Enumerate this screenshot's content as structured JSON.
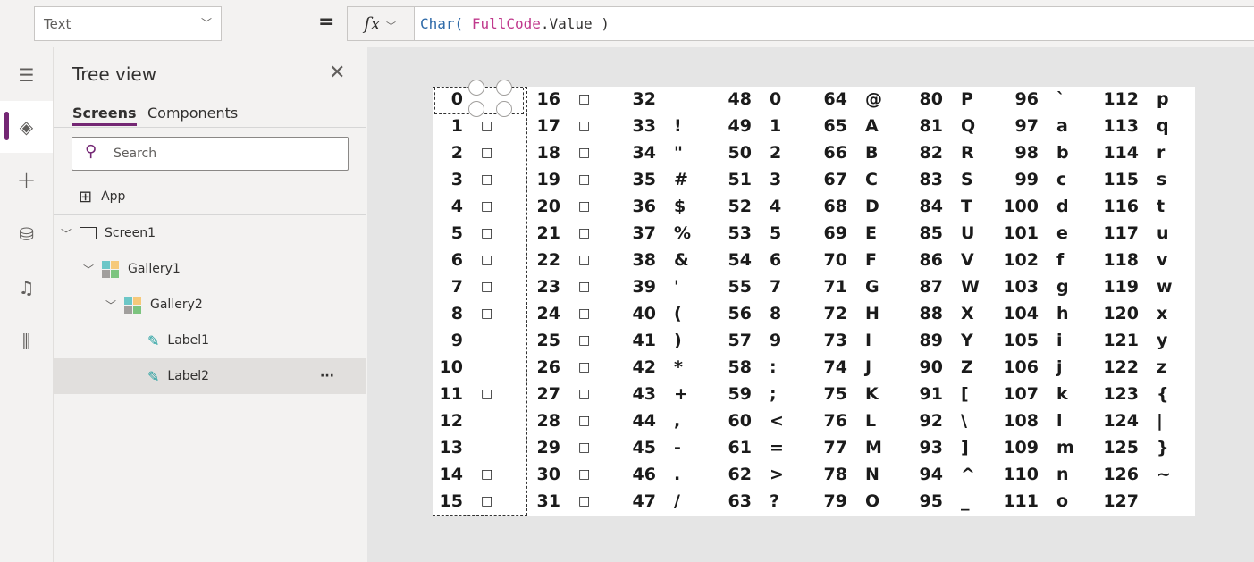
{
  "formula_bar": {
    "property": "Text",
    "equals": "=",
    "fx": "fx",
    "formula_fn": "Char(",
    "formula_id": "FullCode",
    ".value": "",
    "formula_rest": ".Value )"
  },
  "rail": {
    "items": [
      "menu-icon",
      "layers-icon",
      "plus-icon",
      "database-icon",
      "media-icon",
      "tools-icon"
    ],
    "selected": "layers-icon"
  },
  "tree": {
    "title": "Tree view",
    "tabs": [
      "Screens",
      "Components"
    ],
    "active_tab": "Screens",
    "search_placeholder": "Search",
    "nodes": [
      {
        "label": "App"
      },
      {
        "label": "Screen1"
      },
      {
        "label": "Gallery1"
      },
      {
        "label": "Gallery2"
      },
      {
        "label": "Label1"
      },
      {
        "label": "Label2",
        "selected": true,
        "more": "···"
      }
    ]
  },
  "accent": "#742774",
  "gallery": {
    "columns": [
      [
        [
          "0",
          ""
        ],
        [
          "1",
          "□"
        ],
        [
          "2",
          "□"
        ],
        [
          "3",
          "□"
        ],
        [
          "4",
          "□"
        ],
        [
          "5",
          "□"
        ],
        [
          "6",
          "□"
        ],
        [
          "7",
          "□"
        ],
        [
          "8",
          "□"
        ],
        [
          "9",
          ""
        ],
        [
          "10",
          ""
        ],
        [
          "11",
          "□"
        ],
        [
          "12",
          ""
        ],
        [
          "13",
          ""
        ],
        [
          "14",
          "□"
        ],
        [
          "15",
          "□"
        ]
      ],
      [
        [
          "16",
          "□"
        ],
        [
          "17",
          "□"
        ],
        [
          "18",
          "□"
        ],
        [
          "19",
          "□"
        ],
        [
          "20",
          "□"
        ],
        [
          "21",
          "□"
        ],
        [
          "22",
          "□"
        ],
        [
          "23",
          "□"
        ],
        [
          "24",
          "□"
        ],
        [
          "25",
          "□"
        ],
        [
          "26",
          "□"
        ],
        [
          "27",
          "□"
        ],
        [
          "28",
          "□"
        ],
        [
          "29",
          "□"
        ],
        [
          "30",
          "□"
        ],
        [
          "31",
          "□"
        ]
      ],
      [
        [
          "32",
          ""
        ],
        [
          "33",
          "!"
        ],
        [
          "34",
          "\""
        ],
        [
          "35",
          "#"
        ],
        [
          "36",
          "$"
        ],
        [
          "37",
          "%"
        ],
        [
          "38",
          "&"
        ],
        [
          "39",
          "'"
        ],
        [
          "40",
          "("
        ],
        [
          "41",
          ")"
        ],
        [
          "42",
          "*"
        ],
        [
          "43",
          "+"
        ],
        [
          "44",
          ","
        ],
        [
          "45",
          "-"
        ],
        [
          "46",
          "."
        ],
        [
          "47",
          "/"
        ]
      ],
      [
        [
          "48",
          "0"
        ],
        [
          "49",
          "1"
        ],
        [
          "50",
          "2"
        ],
        [
          "51",
          "3"
        ],
        [
          "52",
          "4"
        ],
        [
          "53",
          "5"
        ],
        [
          "54",
          "6"
        ],
        [
          "55",
          "7"
        ],
        [
          "56",
          "8"
        ],
        [
          "57",
          "9"
        ],
        [
          "58",
          ":"
        ],
        [
          "59",
          ";"
        ],
        [
          "60",
          "<"
        ],
        [
          "61",
          "="
        ],
        [
          "62",
          ">"
        ],
        [
          "63",
          "?"
        ]
      ],
      [
        [
          "64",
          "@"
        ],
        [
          "65",
          "A"
        ],
        [
          "66",
          "B"
        ],
        [
          "67",
          "C"
        ],
        [
          "68",
          "D"
        ],
        [
          "69",
          "E"
        ],
        [
          "70",
          "F"
        ],
        [
          "71",
          "G"
        ],
        [
          "72",
          "H"
        ],
        [
          "73",
          "I"
        ],
        [
          "74",
          "J"
        ],
        [
          "75",
          "K"
        ],
        [
          "76",
          "L"
        ],
        [
          "77",
          "M"
        ],
        [
          "78",
          "N"
        ],
        [
          "79",
          "O"
        ]
      ],
      [
        [
          "80",
          "P"
        ],
        [
          "81",
          "Q"
        ],
        [
          "82",
          "R"
        ],
        [
          "83",
          "S"
        ],
        [
          "84",
          "T"
        ],
        [
          "85",
          "U"
        ],
        [
          "86",
          "V"
        ],
        [
          "87",
          "W"
        ],
        [
          "88",
          "X"
        ],
        [
          "89",
          "Y"
        ],
        [
          "90",
          "Z"
        ],
        [
          "91",
          "["
        ],
        [
          "92",
          "\\"
        ],
        [
          "93",
          "]"
        ],
        [
          "94",
          "^"
        ],
        [
          "95",
          "_"
        ]
      ],
      [
        [
          "96",
          "`"
        ],
        [
          "97",
          "a"
        ],
        [
          "98",
          "b"
        ],
        [
          "99",
          "c"
        ],
        [
          "100",
          "d"
        ],
        [
          "101",
          "e"
        ],
        [
          "102",
          "f"
        ],
        [
          "103",
          "g"
        ],
        [
          "104",
          "h"
        ],
        [
          "105",
          "i"
        ],
        [
          "106",
          "j"
        ],
        [
          "107",
          "k"
        ],
        [
          "108",
          "l"
        ],
        [
          "109",
          "m"
        ],
        [
          "110",
          "n"
        ],
        [
          "111",
          "o"
        ]
      ],
      [
        [
          "112",
          "p"
        ],
        [
          "113",
          "q"
        ],
        [
          "114",
          "r"
        ],
        [
          "115",
          "s"
        ],
        [
          "116",
          "t"
        ],
        [
          "117",
          "u"
        ],
        [
          "118",
          "v"
        ],
        [
          "119",
          "w"
        ],
        [
          "120",
          "x"
        ],
        [
          "121",
          "y"
        ],
        [
          "122",
          "z"
        ],
        [
          "123",
          "{"
        ],
        [
          "124",
          "|"
        ],
        [
          "125",
          "}"
        ],
        [
          "126",
          "~"
        ],
        [
          "127",
          ""
        ]
      ]
    ]
  }
}
